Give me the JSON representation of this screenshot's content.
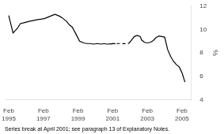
{
  "chart_data": {
    "type": "line",
    "ylabel": "%",
    "annotations": [
      "Series break at April 2001; see paragraph 13 of Explanatory Notes."
    ],
    "xlim": [
      1994.9,
      2005.6
    ],
    "xticks": [
      {
        "value": 1995.08,
        "label": "Feb\n1995"
      },
      {
        "value": 1997.08,
        "label": "Feb\n1997"
      },
      {
        "value": 1999.08,
        "label": "Feb\n1999"
      },
      {
        "value": 2001.08,
        "label": "Feb\n2001"
      },
      {
        "value": 2003.08,
        "label": "Feb\n2003"
      },
      {
        "value": 2005.08,
        "label": "Feb\n2005"
      }
    ],
    "ylim": [
      4,
      12
    ],
    "yticks": [
      4,
      6,
      8,
      10,
      12
    ],
    "grid": false,
    "series": [
      {
        "color": "#000000",
        "line_style": "solid",
        "x": [
          1995.08,
          1995.33,
          1995.58,
          1995.75,
          1996.0,
          1996.25,
          1996.42,
          1996.58,
          1996.75,
          1997.0,
          1997.17,
          1997.33,
          1997.58,
          1997.75,
          1998.0,
          1998.17,
          1998.42,
          1998.58,
          1998.75,
          1999.0,
          1999.17,
          1999.42,
          1999.58,
          1999.75,
          2000.0,
          2000.17,
          2000.42,
          2000.58,
          2000.75,
          2001.0,
          2001.25
        ],
        "values": [
          11.2,
          9.7,
          10.1,
          10.5,
          10.6,
          10.7,
          10.75,
          10.8,
          10.85,
          10.9,
          10.95,
          11.05,
          11.2,
          11.3,
          11.15,
          11.0,
          10.7,
          10.4,
          10.2,
          9.5,
          9.0,
          8.85,
          8.8,
          8.8,
          8.75,
          8.8,
          8.75,
          8.8,
          8.75,
          8.78,
          8.8
        ]
      },
      {
        "color": "#000000",
        "line_style": "dashed",
        "x": [
          2001.0,
          2001.08,
          2001.17,
          2001.25,
          2001.33,
          2001.42,
          2001.5,
          2001.58,
          2001.67,
          2001.75,
          2001.83,
          2001.92,
          2002.0
        ],
        "values": [
          8.78,
          8.79,
          8.79,
          8.8,
          8.79,
          8.8,
          8.8,
          8.8,
          8.79,
          8.8,
          8.79,
          8.8,
          8.8
        ]
      },
      {
        "color": "#000000",
        "line_style": "solid",
        "x": [
          2002.0,
          2002.17,
          2002.33,
          2002.5,
          2002.67,
          2002.75,
          2002.92,
          2003.08,
          2003.25,
          2003.42,
          2003.58,
          2003.75,
          2003.92,
          2004.08,
          2004.25,
          2004.42,
          2004.58,
          2004.75,
          2004.92,
          2005.08,
          2005.25
        ],
        "values": [
          8.8,
          9.1,
          9.4,
          9.5,
          9.4,
          9.1,
          8.9,
          8.85,
          8.9,
          9.05,
          9.3,
          9.45,
          9.4,
          9.35,
          8.3,
          7.7,
          7.3,
          7.0,
          6.8,
          6.3,
          5.5
        ]
      }
    ]
  }
}
